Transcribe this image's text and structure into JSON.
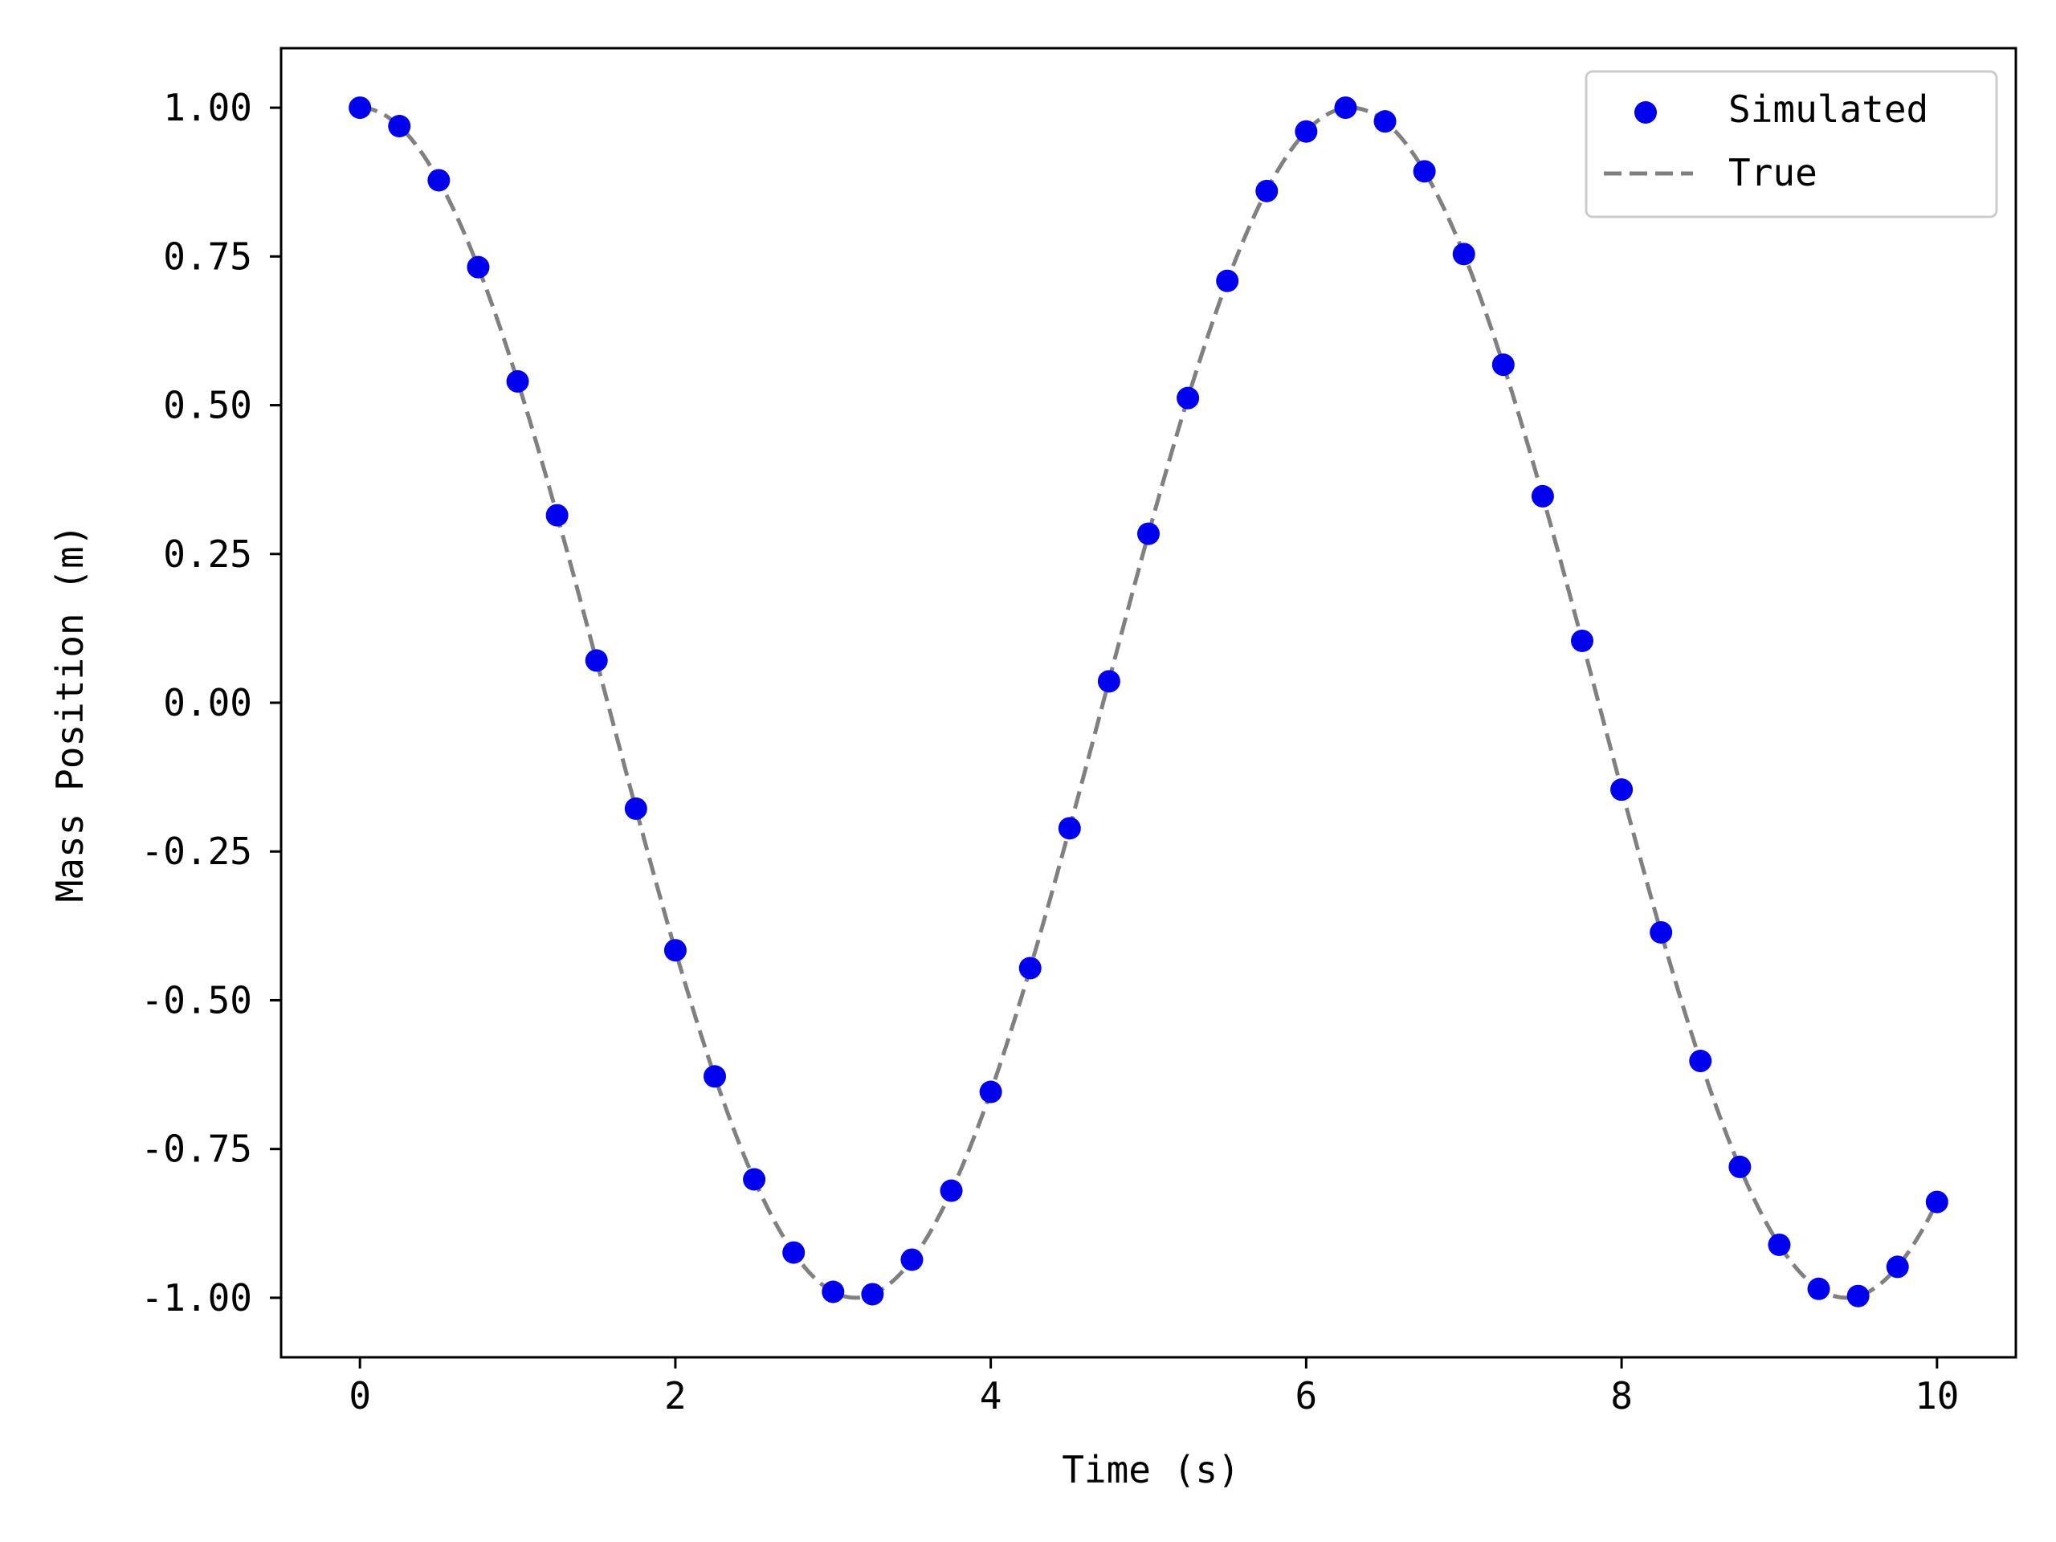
{
  "chart_data": {
    "type": "scatter",
    "xlabel": "Time (s)",
    "ylabel": "Mass Position (m)",
    "xlim": [
      -0.5,
      10.5
    ],
    "ylim": [
      -1.1,
      1.1
    ],
    "xticks": [
      0,
      2,
      4,
      6,
      8,
      10
    ],
    "xtick_labels": [
      "0",
      "2",
      "4",
      "6",
      "8",
      "10"
    ],
    "yticks": [
      1.0,
      0.75,
      0.5,
      0.25,
      0.0,
      -0.25,
      -0.5,
      -0.75,
      -1.0
    ],
    "ytick_labels": [
      "1.00",
      "0.75",
      "0.50",
      "0.25",
      "0.00",
      "-0.25",
      "-0.50",
      "-0.75",
      "-1.00"
    ],
    "grid": false,
    "legend_position": "top-right",
    "series": [
      {
        "name": "Simulated",
        "kind": "scatter",
        "color": "#0000ee",
        "x": [
          0,
          0.25,
          0.5,
          0.75,
          1.0,
          1.25,
          1.5,
          1.75,
          2.0,
          2.25,
          2.5,
          2.75,
          3.0,
          3.25,
          3.5,
          3.75,
          4.0,
          4.25,
          4.5,
          4.75,
          5.0,
          5.25,
          5.5,
          5.75,
          6.0,
          6.25,
          6.5,
          6.75,
          7.0,
          7.25,
          7.5,
          7.75,
          8.0,
          8.25,
          8.5,
          8.75,
          9.0,
          9.25,
          9.5,
          9.75,
          10.0
        ],
        "y": [
          1.0,
          0.969,
          0.878,
          0.732,
          0.54,
          0.315,
          0.071,
          -0.178,
          -0.416,
          -0.628,
          -0.801,
          -0.924,
          -0.99,
          -0.994,
          -0.936,
          -0.82,
          -0.654,
          -0.446,
          -0.211,
          0.036,
          0.284,
          0.512,
          0.709,
          0.86,
          0.96,
          1.0,
          0.977,
          0.893,
          0.754,
          0.568,
          0.347,
          0.104,
          -0.146,
          -0.386,
          -0.602,
          -0.78,
          -0.911,
          -0.985,
          -0.997,
          -0.948,
          -0.839
        ]
      },
      {
        "name": "True",
        "kind": "line",
        "style": "dashed",
        "color": "#808080",
        "function": "cos(t)",
        "x_range": [
          0,
          10
        ]
      }
    ]
  }
}
